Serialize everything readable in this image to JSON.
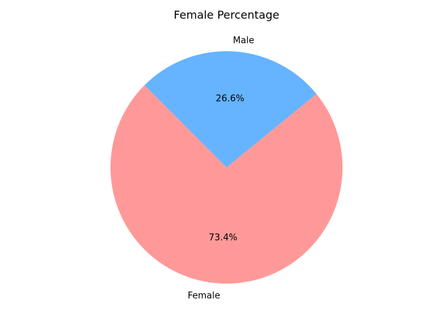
{
  "chart_data": {
    "type": "pie",
    "title": "Female Percentage",
    "slices": [
      {
        "label": "Female",
        "value": 73.4,
        "pct_label": "73.4%",
        "color": "#ff9999"
      },
      {
        "label": "Male",
        "value": 26.6,
        "pct_label": "26.6%",
        "color": "#66b3ff"
      }
    ],
    "start_angle_deg": 135,
    "direction": "counterclockwise"
  }
}
